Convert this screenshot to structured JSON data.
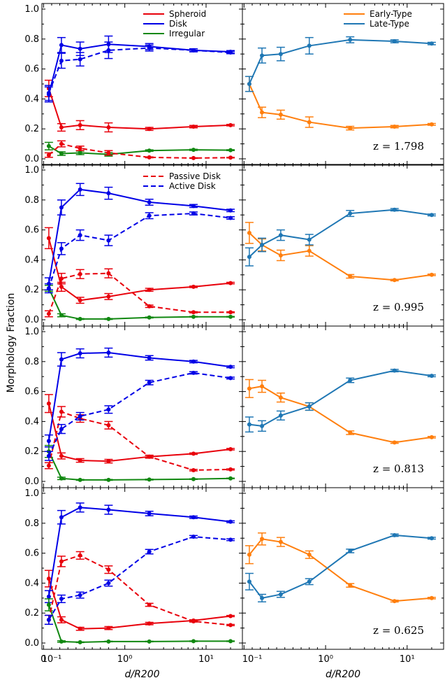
{
  "figure": {
    "ylabel": "Morphology Fraction",
    "xlabel": "d/R200",
    "colors": {
      "spheroid": "#e8000b",
      "disk": "#0000e6",
      "irregular": "#118811",
      "early": "#ff7f0e",
      "late": "#1f77b4"
    }
  },
  "chart_data": [
    {
      "type": "line",
      "panel": "left",
      "row": 0,
      "x": [
        0.065,
        0.22,
        0.45,
        0.8,
        2.0,
        7.0,
        20.0
      ],
      "xscale": "symlog",
      "ylim": [
        0,
        1
      ],
      "legend": "upper-right",
      "series": [
        {
          "name": "Spheroid",
          "color": "#e8000b",
          "style": "solid",
          "values": [
            0.47,
            0.21,
            0.225,
            0.21,
            0.2,
            0.215,
            0.225
          ],
          "err": [
            0.055,
            0.025,
            0.03,
            0.03,
            0.01,
            0.008,
            0.005
          ]
        },
        {
          "name": "Disk",
          "color": "#0000e6",
          "style": "solid",
          "values": [
            0.43,
            0.76,
            0.735,
            0.765,
            0.75,
            0.725,
            0.715
          ],
          "err": [
            0.05,
            0.05,
            0.045,
            0.055,
            0.02,
            0.01,
            0.008
          ]
        },
        {
          "name": "Irregular",
          "color": "#118811",
          "style": "solid",
          "values": [
            0.085,
            0.035,
            0.04,
            0.03,
            0.055,
            0.06,
            0.058
          ],
          "err": [
            0.025,
            0.012,
            0.012,
            0.012,
            0.005,
            0.004,
            0.003
          ]
        },
        {
          "name": "",
          "color": "#e8000b",
          "style": "dashed",
          "values": [
            0.025,
            0.1,
            0.07,
            0.04,
            0.01,
            0.005,
            0.008
          ],
          "err": [
            0.015,
            0.02,
            0.015,
            0.015,
            0.003,
            0.002,
            0.002
          ]
        },
        {
          "name": "",
          "color": "#0000e6",
          "style": "dashed",
          "values": [
            0.44,
            0.655,
            0.665,
            0.725,
            0.74,
            0.725,
            0.71
          ],
          "err": [
            0.05,
            0.05,
            0.045,
            0.055,
            0.02,
            0.01,
            0.008
          ]
        }
      ]
    },
    {
      "type": "line",
      "panel": "right",
      "row": 0,
      "x": [
        0.065,
        0.22,
        0.45,
        0.8,
        2.0,
        7.0,
        20.0
      ],
      "xscale": "symlog",
      "ylim": [
        0,
        1
      ],
      "legend": "upper-right",
      "annotation": "z = 1.798",
      "series": [
        {
          "name": "Early-Type",
          "color": "#ff7f0e",
          "style": "solid",
          "values": [
            0.5,
            0.31,
            0.295,
            0.245,
            0.205,
            0.215,
            0.23
          ],
          "err": [
            0.05,
            0.035,
            0.03,
            0.035,
            0.012,
            0.008,
            0.006
          ]
        },
        {
          "name": "Late-Type",
          "color": "#1f77b4",
          "style": "solid",
          "values": [
            0.5,
            0.69,
            0.7,
            0.755,
            0.795,
            0.785,
            0.77
          ],
          "err": [
            0.05,
            0.05,
            0.045,
            0.055,
            0.02,
            0.01,
            0.008
          ]
        }
      ]
    },
    {
      "type": "line",
      "panel": "left",
      "row": 1,
      "x": [
        0.065,
        0.22,
        0.45,
        0.8,
        2.0,
        7.0,
        20.0
      ],
      "xscale": "symlog",
      "ylim": [
        0,
        1
      ],
      "legend": "upper-right",
      "series": [
        {
          "name": "",
          "color": "#e8000b",
          "style": "solid",
          "values": [
            0.545,
            0.22,
            0.13,
            0.155,
            0.2,
            0.22,
            0.245
          ],
          "err": [
            0.07,
            0.03,
            0.02,
            0.02,
            0.01,
            0.005,
            0.005
          ]
        },
        {
          "name": "",
          "color": "#0000e6",
          "style": "solid",
          "values": [
            0.24,
            0.75,
            0.87,
            0.845,
            0.785,
            0.76,
            0.73
          ],
          "err": [
            0.04,
            0.05,
            0.04,
            0.04,
            0.02,
            0.01,
            0.008
          ]
        },
        {
          "name": "",
          "color": "#118811",
          "style": "solid",
          "values": [
            0.21,
            0.03,
            0.005,
            0.005,
            0.015,
            0.02,
            0.02
          ],
          "err": [
            0.02,
            0.01,
            0.003,
            0.003,
            0.003,
            0.002,
            0.002
          ]
        },
        {
          "name": "Passive Disk",
          "color": "#e8000b",
          "style": "dashed",
          "values": [
            0.04,
            0.275,
            0.305,
            0.31,
            0.09,
            0.05,
            0.05
          ],
          "err": [
            0.02,
            0.035,
            0.03,
            0.03,
            0.008,
            0.004,
            0.003
          ]
        },
        {
          "name": "Active Disk",
          "color": "#0000e6",
          "style": "dashed",
          "values": [
            0.21,
            0.475,
            0.565,
            0.53,
            0.695,
            0.71,
            0.68
          ],
          "err": [
            0.03,
            0.04,
            0.035,
            0.035,
            0.02,
            0.01,
            0.008
          ]
        }
      ]
    },
    {
      "type": "line",
      "panel": "right",
      "row": 1,
      "x": [
        0.065,
        0.22,
        0.45,
        0.8,
        2.0,
        7.0,
        20.0
      ],
      "xscale": "symlog",
      "ylim": [
        0,
        1
      ],
      "annotation": "z = 0.995",
      "series": [
        {
          "name": "",
          "color": "#ff7f0e",
          "style": "solid",
          "values": [
            0.58,
            0.5,
            0.43,
            0.46,
            0.29,
            0.265,
            0.3
          ],
          "err": [
            0.07,
            0.04,
            0.035,
            0.035,
            0.012,
            0.005,
            0.005
          ]
        },
        {
          "name": "",
          "color": "#1f77b4",
          "style": "solid",
          "values": [
            0.42,
            0.5,
            0.565,
            0.535,
            0.71,
            0.735,
            0.7
          ],
          "err": [
            0.06,
            0.045,
            0.035,
            0.035,
            0.02,
            0.008,
            0.006
          ]
        }
      ]
    },
    {
      "type": "line",
      "panel": "left",
      "row": 2,
      "x": [
        0.065,
        0.22,
        0.45,
        0.8,
        2.0,
        7.0,
        20.0
      ],
      "xscale": "symlog",
      "ylim": [
        0,
        1
      ],
      "series": [
        {
          "name": "",
          "color": "#e8000b",
          "style": "solid",
          "values": [
            0.52,
            0.17,
            0.14,
            0.135,
            0.165,
            0.185,
            0.215
          ],
          "err": [
            0.06,
            0.02,
            0.012,
            0.012,
            0.008,
            0.005,
            0.005
          ]
        },
        {
          "name": "",
          "color": "#0000e6",
          "style": "solid",
          "values": [
            0.27,
            0.815,
            0.855,
            0.86,
            0.825,
            0.8,
            0.765
          ],
          "err": [
            0.04,
            0.045,
            0.03,
            0.03,
            0.015,
            0.008,
            0.006
          ]
        },
        {
          "name": "",
          "color": "#118811",
          "style": "solid",
          "values": [
            0.2,
            0.02,
            0.01,
            0.01,
            0.012,
            0.015,
            0.02
          ],
          "err": [
            0.04,
            0.008,
            0.003,
            0.003,
            0.003,
            0.002,
            0.002
          ]
        },
        {
          "name": "",
          "color": "#e8000b",
          "style": "dashed",
          "values": [
            0.105,
            0.465,
            0.42,
            0.375,
            0.165,
            0.075,
            0.08
          ],
          "err": [
            0.02,
            0.035,
            0.025,
            0.025,
            0.01,
            0.005,
            0.004
          ]
        },
        {
          "name": "",
          "color": "#0000e6",
          "style": "dashed",
          "values": [
            0.17,
            0.35,
            0.435,
            0.48,
            0.66,
            0.725,
            0.69
          ],
          "err": [
            0.03,
            0.03,
            0.025,
            0.025,
            0.015,
            0.008,
            0.006
          ]
        }
      ]
    },
    {
      "type": "line",
      "panel": "right",
      "row": 2,
      "x": [
        0.065,
        0.22,
        0.45,
        0.8,
        2.0,
        7.0,
        20.0
      ],
      "xscale": "symlog",
      "ylim": [
        0,
        1
      ],
      "annotation": "z = 0.813",
      "series": [
        {
          "name": "",
          "color": "#ff7f0e",
          "style": "solid",
          "values": [
            0.62,
            0.635,
            0.56,
            0.5,
            0.325,
            0.26,
            0.295
          ],
          "err": [
            0.06,
            0.04,
            0.03,
            0.025,
            0.012,
            0.006,
            0.005
          ]
        },
        {
          "name": "",
          "color": "#1f77b4",
          "style": "solid",
          "values": [
            0.38,
            0.37,
            0.44,
            0.5,
            0.675,
            0.74,
            0.705
          ],
          "err": [
            0.05,
            0.035,
            0.03,
            0.025,
            0.015,
            0.008,
            0.006
          ]
        }
      ]
    },
    {
      "type": "line",
      "panel": "left",
      "row": 3,
      "x": [
        0.065,
        0.22,
        0.45,
        0.8,
        2.0,
        7.0,
        20.0
      ],
      "xscale": "symlog",
      "ylim": [
        0,
        1
      ],
      "series": [
        {
          "name": "",
          "color": "#e8000b",
          "style": "solid",
          "values": [
            0.43,
            0.155,
            0.095,
            0.1,
            0.13,
            0.15,
            0.18
          ],
          "err": [
            0.055,
            0.02,
            0.01,
            0.01,
            0.008,
            0.005,
            0.004
          ]
        },
        {
          "name": "",
          "color": "#0000e6",
          "style": "solid",
          "values": [
            0.31,
            0.84,
            0.905,
            0.89,
            0.865,
            0.84,
            0.81
          ],
          "err": [
            0.04,
            0.045,
            0.03,
            0.03,
            0.015,
            0.008,
            0.006
          ]
        },
        {
          "name": "",
          "color": "#118811",
          "style": "solid",
          "values": [
            0.255,
            0.01,
            0.005,
            0.01,
            0.01,
            0.012,
            0.012
          ],
          "err": [
            0.04,
            0.005,
            0.002,
            0.002,
            0.002,
            0.002,
            0.002
          ]
        },
        {
          "name": "",
          "color": "#e8000b",
          "style": "dashed",
          "values": [
            0.155,
            0.545,
            0.585,
            0.49,
            0.255,
            0.145,
            0.12
          ],
          "err": [
            0.03,
            0.035,
            0.025,
            0.025,
            0.01,
            0.005,
            0.004
          ]
        },
        {
          "name": "",
          "color": "#0000e6",
          "style": "dashed",
          "values": [
            0.155,
            0.295,
            0.32,
            0.4,
            0.61,
            0.71,
            0.69
          ],
          "err": [
            0.03,
            0.025,
            0.02,
            0.02,
            0.015,
            0.008,
            0.006
          ]
        }
      ]
    },
    {
      "type": "line",
      "panel": "right",
      "row": 3,
      "x": [
        0.065,
        0.22,
        0.45,
        0.8,
        2.0,
        7.0,
        20.0
      ],
      "xscale": "symlog",
      "ylim": [
        0,
        1
      ],
      "annotation": "z = 0.625",
      "series": [
        {
          "name": "",
          "color": "#ff7f0e",
          "style": "solid",
          "values": [
            0.59,
            0.695,
            0.675,
            0.59,
            0.385,
            0.28,
            0.3
          ],
          "err": [
            0.06,
            0.04,
            0.03,
            0.025,
            0.012,
            0.006,
            0.005
          ]
        },
        {
          "name": "",
          "color": "#1f77b4",
          "style": "solid",
          "values": [
            0.41,
            0.3,
            0.325,
            0.41,
            0.615,
            0.72,
            0.7
          ],
          "err": [
            0.055,
            0.025,
            0.02,
            0.02,
            0.012,
            0.008,
            0.006
          ]
        }
      ]
    }
  ]
}
